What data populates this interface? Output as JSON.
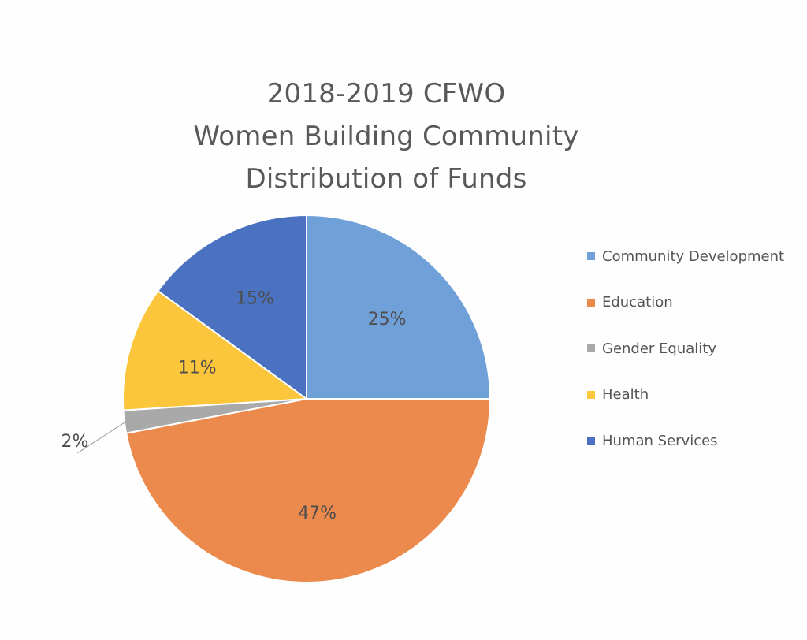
{
  "chart_data": {
    "type": "pie",
    "title_lines": [
      "2018-2019 CFWO",
      "Women Building Community",
      "Distribution of Funds"
    ],
    "slices": [
      {
        "label": "Community Development",
        "value": 25,
        "display": "25%",
        "color": "#6fa0d8"
      },
      {
        "label": "Education",
        "value": 47,
        "display": "47%",
        "color": "#ec8a4e"
      },
      {
        "label": "Gender Equality",
        "value": 2,
        "display": "2%",
        "color": "#a9a9a9"
      },
      {
        "label": "Health",
        "value": 11,
        "display": "11%",
        "color": "#fcc63c"
      },
      {
        "label": "Human Services",
        "value": 15,
        "display": "15%",
        "color": "#4a72c0"
      }
    ],
    "legend_position": "right"
  }
}
